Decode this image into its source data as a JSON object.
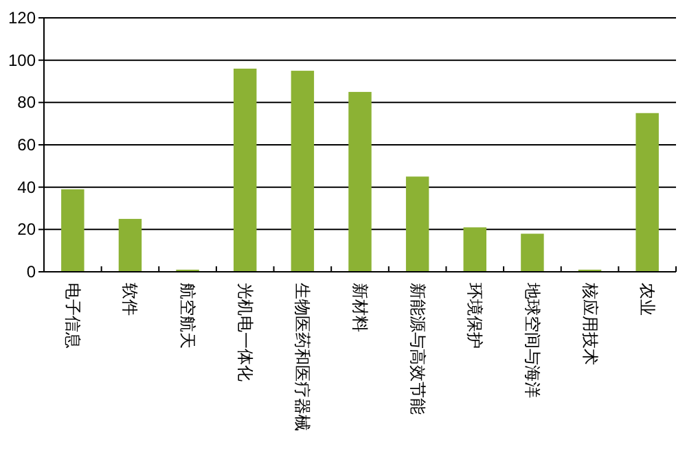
{
  "chart_data": {
    "type": "bar",
    "categories": [
      "电子信息",
      "软件",
      "航空航天",
      "光机电一体化",
      "生物医药和医疗器械",
      "新材料",
      "新能源与高效节能",
      "环境保护",
      "地球空间与海洋",
      "核应用技术",
      "农业"
    ],
    "values": [
      39,
      25,
      1,
      96,
      95,
      85,
      45,
      21,
      18,
      1,
      75
    ],
    "color": "#8cb234",
    "ylim": [
      0,
      120
    ],
    "yticks": [
      0,
      20,
      40,
      60,
      80,
      100,
      120
    ],
    "grid": "y"
  }
}
